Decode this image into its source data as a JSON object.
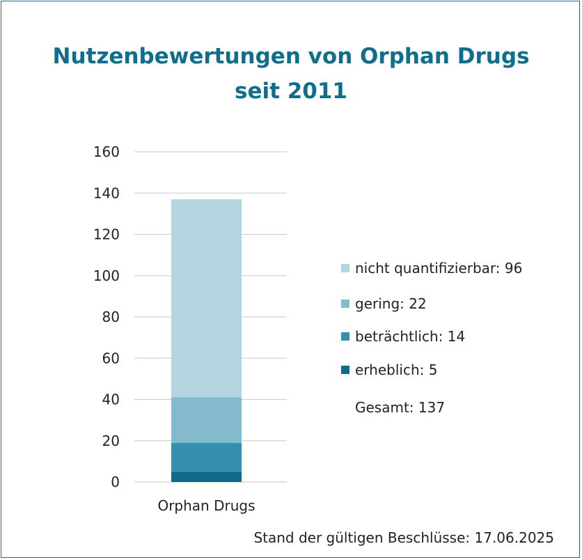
{
  "chart_data": {
    "type": "bar",
    "stacked": true,
    "title": "Nutzenbewertungen von Orphan Drugs",
    "subtitle": "seit 2011",
    "categories": [
      "Orphan Drugs"
    ],
    "series": [
      {
        "name": "erheblich",
        "values": [
          5
        ],
        "color": "#0e6b8c",
        "legend_text": "erheblich: 5"
      },
      {
        "name": "beträchtlich",
        "values": [
          14
        ],
        "color": "#3490ad",
        "legend_text": "beträchtlich: 14"
      },
      {
        "name": "gering",
        "values": [
          22
        ],
        "color": "#84bace",
        "legend_text": "gering: 22"
      },
      {
        "name": "nicht quantifizierbar",
        "values": [
          96
        ],
        "color": "#b4d4df",
        "legend_text": "nicht quantifizierbar: 96"
      }
    ],
    "yticks": [
      "0",
      "20",
      "40",
      "60",
      "80",
      "100",
      "120",
      "140",
      "160"
    ],
    "ylim": [
      0,
      160
    ],
    "grid": true,
    "legend_position": "right",
    "total_text": "Gesamt: 137"
  },
  "footnote": "Stand der gültigen Beschlüsse: 17.06.2025",
  "colors": {
    "title": "#0f6e8c",
    "border": "#1a6e8a",
    "grid": "#d0d0d0"
  }
}
